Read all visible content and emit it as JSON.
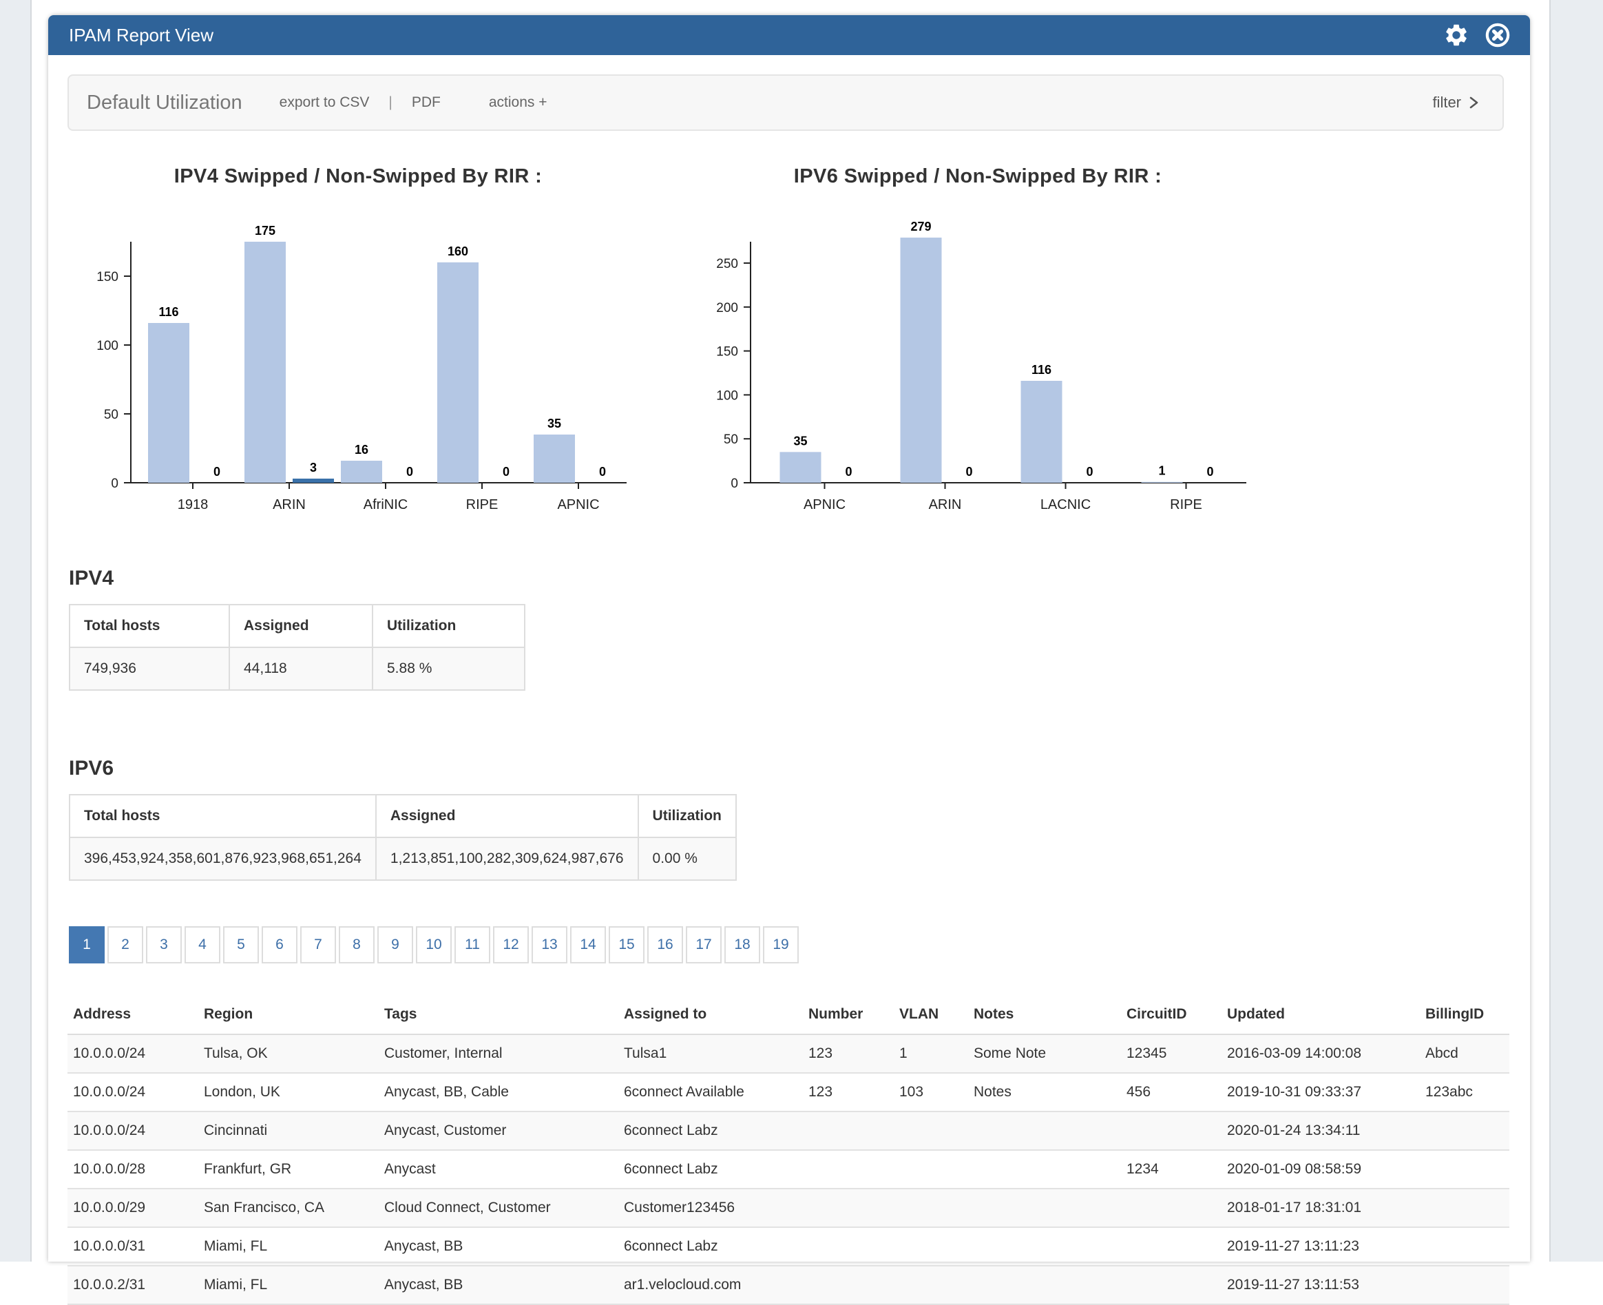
{
  "window": {
    "title": "IPAM Report View"
  },
  "toolbar": {
    "title": "Default Utilization",
    "export_csv": "export to CSV",
    "separator": "|",
    "pdf": "PDF",
    "actions": "actions +",
    "filter": "filter"
  },
  "colors": {
    "header_blue": "#2f6399",
    "bar_light": "#b4c7e4",
    "bar_dark": "#3a71a9",
    "pagination_active": "#4478b2",
    "stripe": "#f9f9f9"
  },
  "chart_data": [
    {
      "type": "bar",
      "title": "IPV4 Swipped / Non-Swipped By RIR :",
      "categories": [
        "1918",
        "ARIN",
        "AfriNIC",
        "RIPE",
        "APNIC"
      ],
      "series": [
        {
          "name": "Swipped",
          "values": [
            116,
            175,
            16,
            160,
            35
          ]
        },
        {
          "name": "Non-Swipped",
          "values": [
            0,
            3,
            0,
            0,
            0
          ]
        }
      ],
      "yticks": [
        0,
        50,
        100,
        150
      ],
      "ylim": [
        0,
        185
      ],
      "grid": false,
      "legend": "none",
      "colors": {
        "swipped": "#b4c7e4",
        "non_swipped": "#3a71a9"
      }
    },
    {
      "type": "bar",
      "title": "IPV6 Swipped / Non-Swipped By RIR :",
      "categories": [
        "APNIC",
        "ARIN",
        "LACNIC",
        "RIPE"
      ],
      "series": [
        {
          "name": "Swipped",
          "values": [
            35,
            279,
            116,
            1
          ]
        },
        {
          "name": "Non-Swipped",
          "values": [
            0,
            0,
            0,
            0
          ]
        }
      ],
      "yticks": [
        0,
        50,
        100,
        150,
        200,
        250
      ],
      "ylim": [
        0,
        290
      ],
      "grid": false,
      "legend": "none",
      "colors": {
        "swipped": "#b4c7e4",
        "non_swipped": "#3a71a9"
      }
    }
  ],
  "ipv4_summary": {
    "heading": "IPV4",
    "headers": [
      "Total hosts",
      "Assigned",
      "Utilization"
    ],
    "row": [
      "749,936",
      "44,118",
      "5.88 %"
    ]
  },
  "ipv6_summary": {
    "heading": "IPV6",
    "headers": [
      "Total hosts",
      "Assigned",
      "Utilization"
    ],
    "row": [
      "396,453,924,358,601,876,923,968,651,264",
      "1,213,851,100,282,309,624,987,676",
      "0.00 %"
    ]
  },
  "pagination": {
    "active": "1",
    "pages": [
      "1",
      "2",
      "3",
      "4",
      "5",
      "6",
      "7",
      "8",
      "9",
      "10",
      "11",
      "12",
      "13",
      "14",
      "15",
      "16",
      "17",
      "18",
      "19"
    ]
  },
  "records_table": {
    "headers": [
      "Address",
      "Region",
      "Tags",
      "Assigned to",
      "Number",
      "VLAN",
      "Notes",
      "CircuitID",
      "Updated",
      "BillingID"
    ],
    "rows": [
      [
        "10.0.0.0/24",
        "Tulsa, OK",
        "Customer, Internal",
        "Tulsa1",
        "123",
        "1",
        "Some Note",
        "12345",
        "2016-03-09 14:00:08",
        "Abcd"
      ],
      [
        "10.0.0.0/24",
        "London, UK",
        "Anycast, BB, Cable",
        "6connect Available",
        "123",
        "103",
        "Notes",
        "456",
        "2019-10-31 09:33:37",
        "123abc"
      ],
      [
        "10.0.0.0/24",
        "Cincinnati",
        "Anycast, Customer",
        "6connect Labz",
        "",
        "",
        "",
        "",
        "2020-01-24 13:34:11",
        ""
      ],
      [
        "10.0.0.0/28",
        "Frankfurt, GR",
        "Anycast",
        "6connect Labz",
        "",
        "",
        "",
        "1234",
        "2020-01-09 08:58:59",
        ""
      ],
      [
        "10.0.0.0/29",
        "San Francisco, CA",
        "Cloud Connect, Customer",
        "Customer123456",
        "",
        "",
        "",
        "",
        "2018-01-17 18:31:01",
        ""
      ],
      [
        "10.0.0.0/31",
        "Miami, FL",
        "Anycast, BB",
        "6connect Labz",
        "",
        "",
        "",
        "",
        "2019-11-27 13:11:23",
        ""
      ],
      [
        "10.0.0.2/31",
        "Miami, FL",
        "Anycast, BB",
        "ar1.velocloud.com",
        "",
        "",
        "",
        "",
        "2019-11-27 13:11:53",
        ""
      ]
    ]
  }
}
